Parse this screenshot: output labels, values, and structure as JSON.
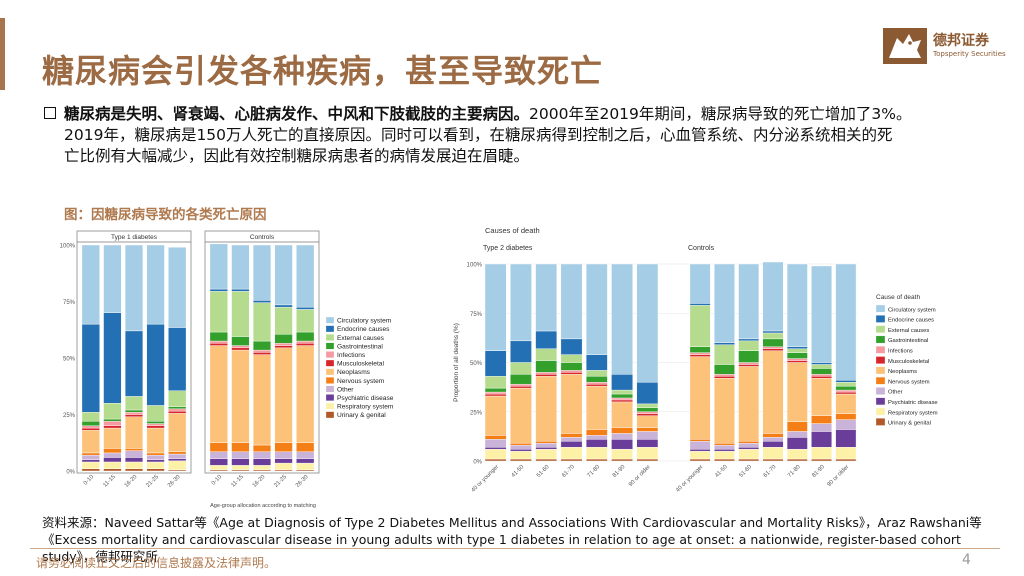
{
  "title": "糖尿病会引发各种疾病，甚至导致死亡",
  "logo": {
    "cn": "德邦证券",
    "en": "Topsperity Securities",
    "mark_icon": "wolf-head-icon"
  },
  "bullet": {
    "lead": "糖尿病是失明、肾衰竭、心脏病发作、中风和下肢截肢的主要病因。",
    "text1": "2000年至2019年期间，糖尿病导致的死亡增加了3%。",
    "text2": "2019年，糖尿病是150万人死亡的直接原因。同时可以看到，在糖尿病得到控制之后，心血管系统、内分泌系统相关的死",
    "text3": "亡比例有大幅减少，因此有效控制糖尿病患者的病情发展迫在眉睫。"
  },
  "figure_caption": "图：因糖尿病导致的各类死亡原因",
  "source": "资料来源：Naveed Sattar等《Age at Diagnosis of Type 2 Diabetes Mellitus and Associations With Cardiovascular and Mortality Risks》，Araz Rawshani等《Excess mortality and cardiovascular disease in young adults with type 1 diabetes in relation to age at onset: a nationwide, register-based cohort study》，德邦研究所",
  "footer": {
    "disclaimer": "请务必阅读正文之后的信息披露及法律声明。",
    "page": "4"
  },
  "colors": {
    "Circulatory system": "#a6cde6",
    "Endocrine causes": "#2470b4",
    "External causes": "#b5dc8e",
    "Gastrointestinal": "#33a02c",
    "Infections": "#f59aa0",
    "Musculoskeletal": "#d7262b",
    "Neoplasms": "#fcc27a",
    "Nervous system": "#f57f17",
    "Other": "#c9b3d9",
    "Psychiatric disease": "#6a3d9a",
    "Respiratory system": "#fdf1a8",
    "Urinary & genital": "#b15928"
  },
  "chart_data": [
    {
      "type": "bar",
      "stacked": true,
      "title": "",
      "panels": [
        {
          "name": "Type 1 diabetes",
          "categories": [
            "0-10",
            "11-15",
            "16-20",
            "21-25",
            "26-30"
          ]
        },
        {
          "name": "Controls",
          "categories": [
            "0-10",
            "11-15",
            "16-20",
            "21-25",
            "26-30"
          ]
        }
      ],
      "xlabel": "Age-group allocation according to matching",
      "ylabel": "",
      "yticks": [
        "0%",
        "25%",
        "50%",
        "75%",
        "100%"
      ],
      "ylim": [
        0,
        100
      ],
      "legend": [
        "Circulatory system",
        "Endocrine causes",
        "External causes",
        "Gastrointestinal",
        "Infections",
        "Musculoskeletal",
        "Neoplasms",
        "Nervous system",
        "Other",
        "Psychiatric disease",
        "Respiratory system",
        "Urinary & genital"
      ],
      "legend_position": "right",
      "order_bottom_to_top": [
        "Urinary & genital",
        "Respiratory system",
        "Psychiatric disease",
        "Other",
        "Nervous system",
        "Neoplasms",
        "Musculoskeletal",
        "Infections",
        "Gastrointestinal",
        "External causes",
        "Endocrine causes",
        "Circulatory system"
      ],
      "series": [
        {
          "name": "Urinary & genital",
          "values": [
            1,
            1,
            1,
            1,
            0.5,
            0.5,
            0.5,
            0.5,
            0.5,
            0.5
          ]
        },
        {
          "name": "Respiratory system",
          "values": [
            3,
            3,
            3,
            3,
            4,
            2,
            2,
            2,
            3,
            3
          ]
        },
        {
          "name": "Psychiatric disease",
          "values": [
            1,
            2,
            2,
            1,
            1,
            3,
            3,
            3,
            2,
            2
          ]
        },
        {
          "name": "Other",
          "values": [
            2,
            2,
            3,
            2,
            2,
            3,
            3,
            3,
            3,
            3
          ]
        },
        {
          "name": "Nervous system",
          "values": [
            1,
            2,
            1,
            1,
            1,
            4,
            4,
            3,
            4,
            4
          ]
        },
        {
          "name": "Neoplasms",
          "values": [
            10,
            9,
            14,
            11,
            17,
            43,
            41,
            40,
            42,
            43
          ]
        },
        {
          "name": "Musculoskeletal",
          "values": [
            1,
            1,
            1,
            1,
            1,
            1,
            1,
            1,
            1,
            1
          ]
        },
        {
          "name": "Infections",
          "values": [
            1,
            2,
            1,
            1,
            1,
            1,
            1,
            1,
            1,
            1
          ]
        },
        {
          "name": "Gastrointestinal",
          "values": [
            2,
            1,
            1,
            1,
            1,
            4,
            4,
            4,
            4,
            4
          ]
        },
        {
          "name": "External causes",
          "values": [
            4,
            7,
            6,
            7,
            7,
            18,
            20,
            17,
            12,
            10
          ]
        },
        {
          "name": "Endocrine causes",
          "values": [
            39,
            40,
            29,
            36,
            28,
            1,
            1,
            1,
            1,
            1
          ]
        },
        {
          "name": "Circulatory system",
          "values": [
            35,
            30,
            38,
            35,
            35.5,
            20,
            19.5,
            24.5,
            26.5,
            27.5
          ]
        }
      ]
    },
    {
      "type": "bar",
      "stacked": true,
      "title": "Causes of death",
      "panels": [
        {
          "name": "Type 2 diabetes",
          "categories": [
            "40 or younger",
            "41-50",
            "51-60",
            "61-70",
            "71-80",
            "81-90",
            "90 or older"
          ]
        },
        {
          "name": "Controls",
          "categories": [
            "40 or younger",
            "41-50",
            "51-60",
            "61-70",
            "71-80",
            "81-90",
            "90 or older"
          ]
        }
      ],
      "xlabel": "",
      "ylabel": "Proportion of all deaths (%)",
      "yticks": [
        "0%",
        "25%",
        "50%",
        "75%",
        "100%"
      ],
      "ylim": [
        0,
        100
      ],
      "legend_title": "Cause of death",
      "legend": [
        "Circulatory system",
        "Endocrine causes",
        "External causes",
        "Gastrointestinal",
        "Infections",
        "Musculoskeletal",
        "Neoplasms",
        "Nervous system",
        "Other",
        "Psychiatric disease",
        "Respiratory system",
        "Urinary & genital"
      ],
      "legend_position": "right",
      "order_bottom_to_top": [
        "Urinary & genital",
        "Respiratory system",
        "Psychiatric disease",
        "Other",
        "Nervous system",
        "Neoplasms",
        "Musculoskeletal",
        "Infections",
        "Gastrointestinal",
        "External causes",
        "Endocrine causes",
        "Circulatory system"
      ],
      "series": [
        {
          "name": "Urinary & genital",
          "values": [
            1,
            1,
            1,
            1,
            1,
            1,
            1,
            1,
            1,
            1,
            1,
            1,
            1,
            1
          ]
        },
        {
          "name": "Respiratory system",
          "values": [
            5,
            4,
            5,
            6,
            6,
            5,
            6,
            4,
            4,
            5,
            6,
            5,
            6,
            6
          ]
        },
        {
          "name": "Psychiatric disease",
          "values": [
            1,
            1,
            1,
            3,
            4,
            5,
            4,
            1,
            1,
            1,
            3,
            6,
            8,
            9
          ]
        },
        {
          "name": "Other",
          "values": [
            4,
            2,
            2,
            2,
            2,
            3,
            4,
            4,
            2,
            2,
            2,
            3,
            4,
            5
          ]
        },
        {
          "name": "Nervous system",
          "values": [
            2,
            1,
            1,
            2,
            3,
            3,
            2,
            1,
            1,
            1,
            2,
            5,
            4,
            3
          ]
        },
        {
          "name": "Neoplasms",
          "values": [
            20,
            28,
            33,
            30,
            22,
            13,
            6,
            42,
            33,
            38,
            42,
            30,
            19,
            10
          ]
        },
        {
          "name": "Musculoskeletal",
          "values": [
            1,
            1,
            1,
            1,
            1,
            1,
            1,
            1,
            1,
            1,
            1,
            1,
            1,
            1
          ]
        },
        {
          "name": "Infections",
          "values": [
            1,
            1,
            1,
            1,
            1,
            1,
            1,
            1,
            1,
            1,
            1,
            1,
            1,
            1
          ]
        },
        {
          "name": "Gastrointestinal",
          "values": [
            2,
            5,
            6,
            4,
            3,
            2,
            2,
            3,
            5,
            6,
            4,
            3,
            3,
            2
          ]
        },
        {
          "name": "External causes",
          "values": [
            6,
            6,
            6,
            4,
            3,
            2,
            2,
            21,
            10,
            5,
            3,
            2,
            2,
            2
          ]
        },
        {
          "name": "Endocrine causes",
          "values": [
            13,
            11,
            9,
            8,
            8,
            8,
            11,
            1,
            1,
            1,
            1,
            1,
            1,
            1
          ]
        },
        {
          "name": "Circulatory system",
          "values": [
            44,
            39,
            34,
            38,
            46,
            56,
            60,
            20,
            40,
            38,
            35,
            42,
            49,
            59
          ]
        }
      ]
    }
  ]
}
